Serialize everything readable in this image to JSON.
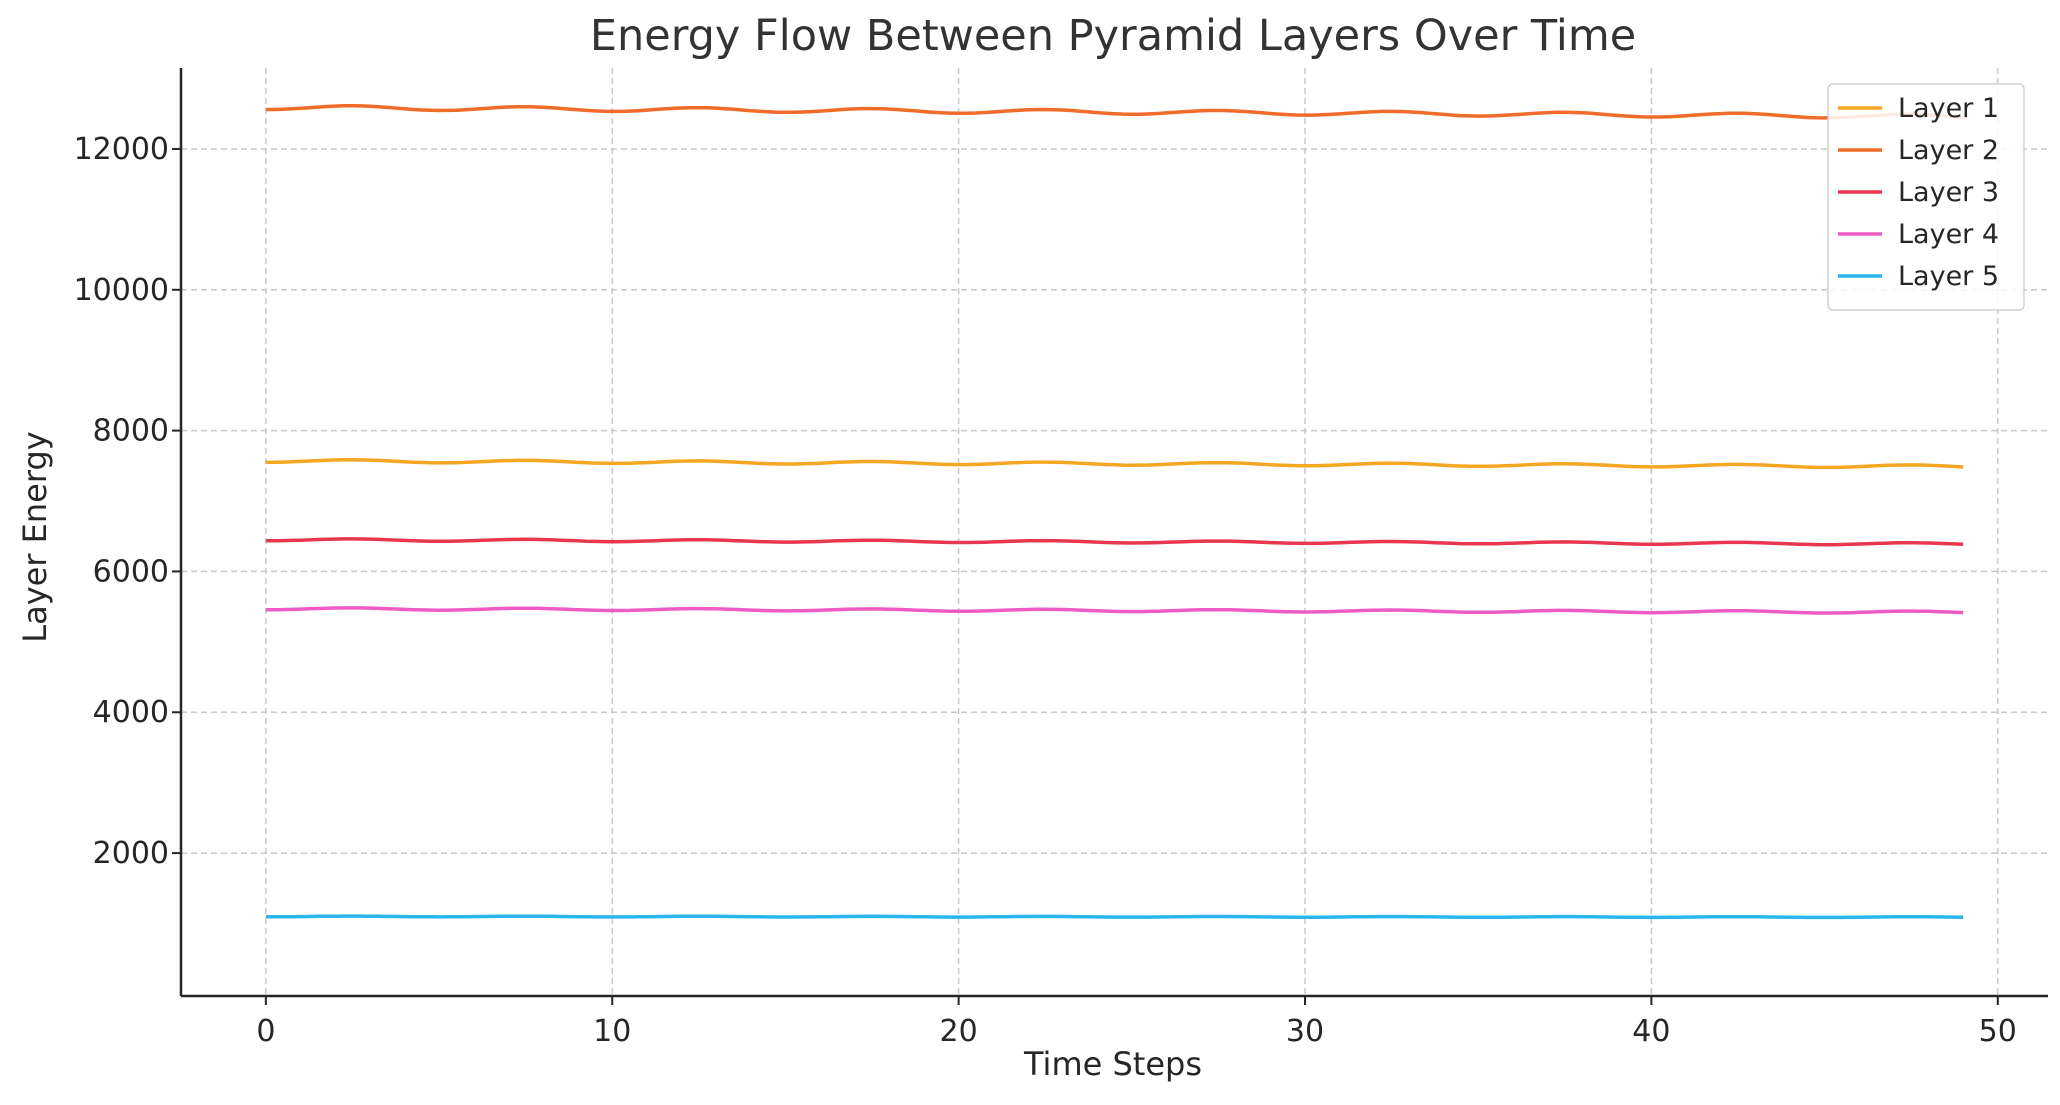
{
  "chart_data": {
    "type": "line",
    "title": "Energy Flow Between Pyramid Layers Over Time",
    "xlabel": "Time Steps",
    "ylabel": "Layer Energy",
    "xlim": [
      -2.45,
      51.45
    ],
    "ylim": [
      -30,
      13150
    ],
    "xticks": [
      0,
      10,
      20,
      30,
      40,
      50
    ],
    "yticks": [
      2000,
      4000,
      6000,
      8000,
      10000,
      12000
    ],
    "grid": true,
    "legend_position": "top-right",
    "series": [
      {
        "name": "Layer 1",
        "color": "#F5A623",
        "base": 7570,
        "end": 7490,
        "amplitude": 20
      },
      {
        "name": "Layer 2",
        "color": "#EF6C2A",
        "base": 12590,
        "end": 12460,
        "amplitude": 30
      },
      {
        "name": "Layer 3",
        "color": "#E8384F",
        "base": 6450,
        "end": 6390,
        "amplitude": 15
      },
      {
        "name": "Layer 4",
        "color": "#EE5BC4",
        "base": 5470,
        "end": 5420,
        "amplitude": 15
      },
      {
        "name": "Layer 5",
        "color": "#2BB5F0",
        "base": 1100,
        "end": 1090,
        "amplitude": 5
      }
    ],
    "x_start": 0,
    "x_end": 49,
    "period": 5
  }
}
